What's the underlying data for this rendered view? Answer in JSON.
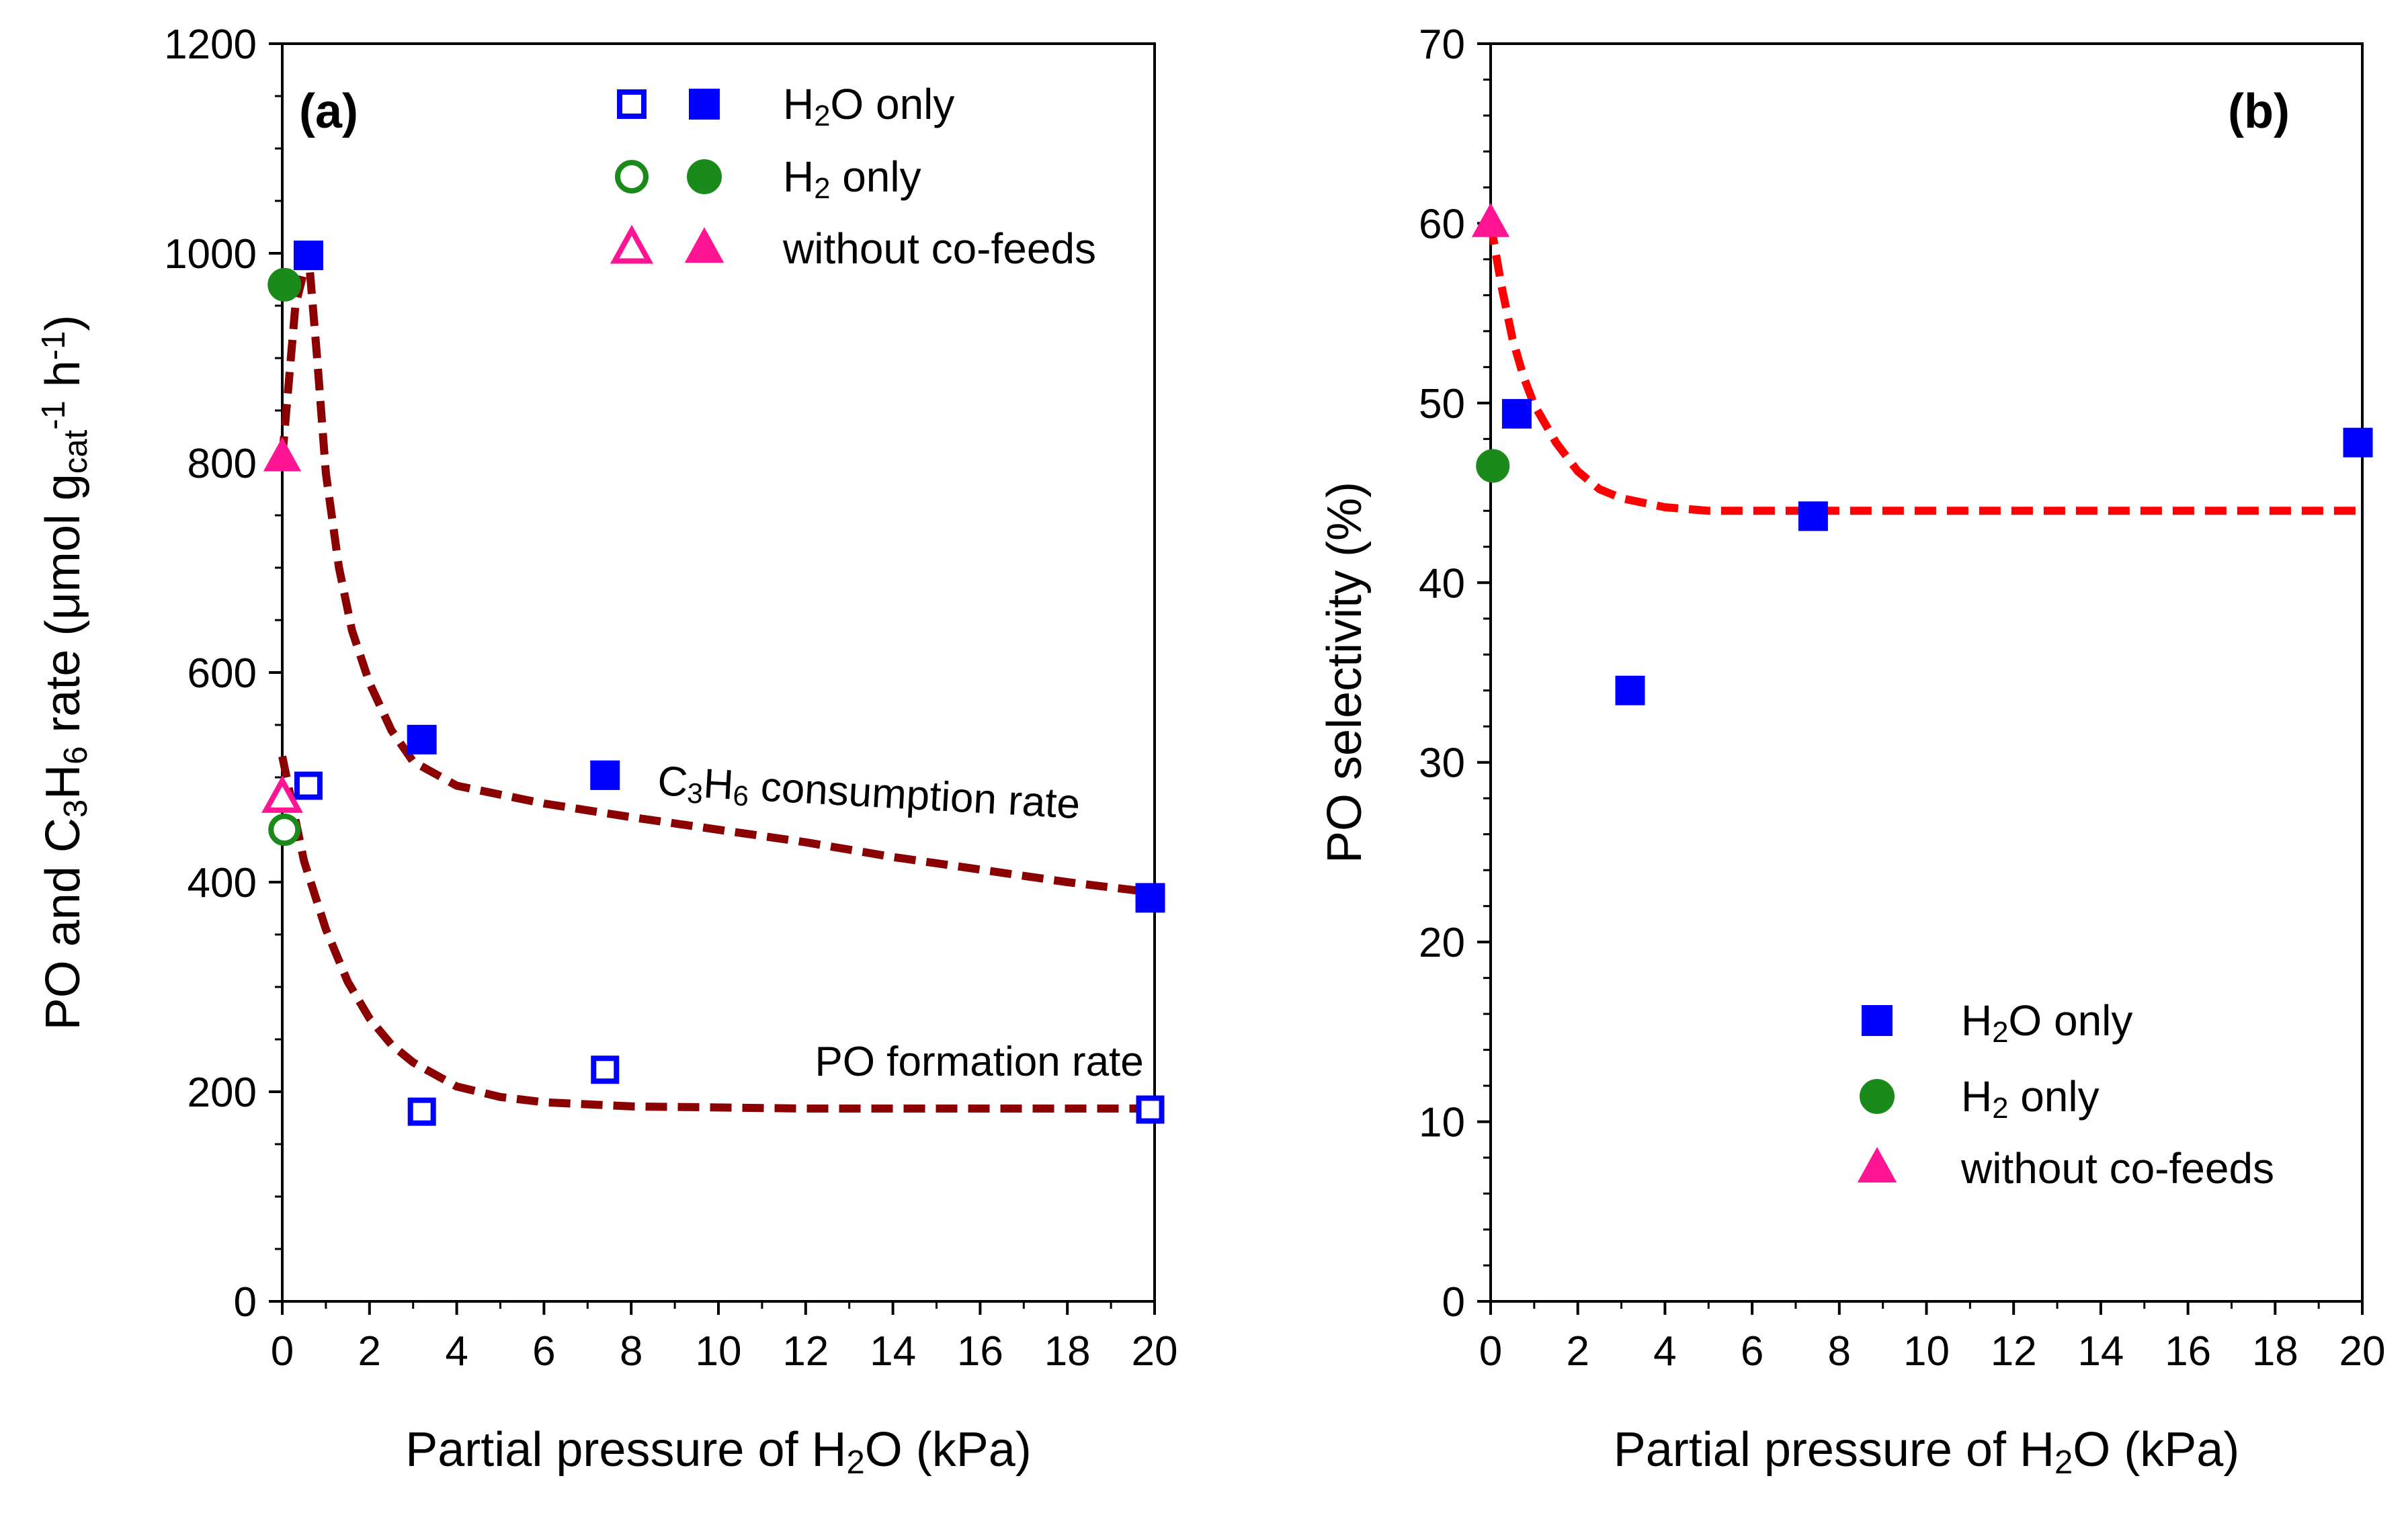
{
  "colors": {
    "h2o": "#0000ff",
    "h2": "#1a8a1a",
    "noco": "#ff1493",
    "fit": "#8b0000",
    "fit_b": "#ff0000",
    "axis": "#000000"
  },
  "chart_data": [
    {
      "type": "scatter",
      "panel_label": "(a)",
      "xlabel": "Partial pressure of H2O (kPa)",
      "xlabel_parts": {
        "pre": "Partial pressure of H",
        "sub": "2",
        "post": "O (kPa)"
      },
      "ylabel": "PO and C3H6 rate (μmol gcat-1 h-1)",
      "ylabel_parts": {
        "pre": "PO and C",
        "sub1": "3",
        "mid": "H",
        "sub2": "6",
        "post": " rate (μmol g",
        "sub3": "cat",
        "sup1": "-1",
        "h": " h",
        "sup2": "-1",
        "end": ")"
      },
      "xlim": [
        0,
        20
      ],
      "ylim": [
        0,
        1200
      ],
      "xticks": [
        0,
        2,
        4,
        6,
        8,
        10,
        12,
        14,
        16,
        18,
        20
      ],
      "yticks": [
        0,
        200,
        400,
        600,
        800,
        1000,
        1200
      ],
      "legend": {
        "position": "top-right",
        "entries": [
          {
            "label": "H2O only",
            "parts": {
              "pre": "H",
              "sub": "2",
              "post": "O only"
            },
            "marker": "square"
          },
          {
            "label": "H2 only",
            "parts": {
              "pre": "H",
              "sub": "2",
              "post": " only"
            },
            "marker": "circle"
          },
          {
            "label": "without co-feeds",
            "parts": {
              "pre": "without co-feeds",
              "sub": "",
              "post": ""
            },
            "marker": "triangle"
          }
        ]
      },
      "annotations": {
        "consumption": {
          "pre": "C",
          "sub1": "3",
          "mid": "H",
          "sub2": "6",
          "post": " consumption rate"
        },
        "formation": "PO formation rate"
      },
      "series": [
        {
          "name": "H2O only - C3H6 consumption rate",
          "marker": "square",
          "fill": "filled",
          "x": [
            0.6,
            3.2,
            7.4,
            19.9
          ],
          "y": [
            998,
            536,
            502,
            385
          ]
        },
        {
          "name": "H2O only - PO formation rate",
          "marker": "square",
          "fill": "open",
          "x": [
            0.6,
            3.2,
            7.4,
            19.9
          ],
          "y": [
            492,
            181,
            221,
            183
          ]
        },
        {
          "name": "H2 only - C3H6 consumption rate",
          "marker": "circle",
          "fill": "filled",
          "x": [
            0.05
          ],
          "y": [
            970
          ]
        },
        {
          "name": "H2 only - PO formation rate",
          "marker": "circle",
          "fill": "open",
          "x": [
            0.05
          ],
          "y": [
            450
          ]
        },
        {
          "name": "without co-feeds - C3H6 consumption rate",
          "marker": "triangle",
          "fill": "filled",
          "x": [
            0.0
          ],
          "y": [
            805
          ]
        },
        {
          "name": "without co-feeds - PO formation rate",
          "marker": "triangle",
          "fill": "open",
          "x": [
            0.0
          ],
          "y": [
            480
          ]
        }
      ],
      "fit_lines": [
        {
          "name": "C3H6 consumption fit",
          "x": [
            0.0,
            0.3,
            0.6,
            0.8,
            1.0,
            1.3,
            1.6,
            2.0,
            2.5,
            3.0,
            4.0,
            6.0,
            8.0,
            10.0,
            12.0,
            14.0,
            16.0,
            18.0,
            20.0
          ],
          "y": [
            805,
            950,
            1000,
            900,
            790,
            700,
            640,
            590,
            545,
            515,
            492,
            475,
            462,
            450,
            438,
            424,
            412,
            400,
            390
          ]
        },
        {
          "name": "PO formation fit",
          "x": [
            0.0,
            0.5,
            1.0,
            1.5,
            2.0,
            2.5,
            3.0,
            4.0,
            5.0,
            6.0,
            8.0,
            10.0,
            12.0,
            16.0,
            20.0
          ],
          "y": [
            520,
            420,
            355,
            305,
            270,
            245,
            228,
            205,
            195,
            190,
            186,
            185,
            184,
            184,
            184
          ]
        }
      ]
    },
    {
      "type": "scatter",
      "panel_label": "(b)",
      "xlabel": "Partial pressure of H2O (kPa)",
      "xlabel_parts": {
        "pre": "Partial pressure of H",
        "sub": "2",
        "post": "O (kPa)"
      },
      "ylabel": "PO selectivity (%)",
      "xlim": [
        0,
        20
      ],
      "ylim": [
        0,
        70
      ],
      "xticks": [
        0,
        2,
        4,
        6,
        8,
        10,
        12,
        14,
        16,
        18,
        20
      ],
      "yticks": [
        0,
        10,
        20,
        30,
        40,
        50,
        60,
        70
      ],
      "legend": {
        "position": "bottom-right",
        "entries": [
          {
            "label": "H2O only",
            "parts": {
              "pre": "H",
              "sub": "2",
              "post": "O only"
            },
            "marker": "square"
          },
          {
            "label": "H2 only",
            "parts": {
              "pre": "H",
              "sub": "2",
              "post": " only"
            },
            "marker": "circle"
          },
          {
            "label": "without co-feeds",
            "parts": {
              "pre": "without co-feeds",
              "sub": "",
              "post": ""
            },
            "marker": "triangle"
          }
        ]
      },
      "series": [
        {
          "name": "H2O only",
          "marker": "square",
          "fill": "filled",
          "x": [
            0.6,
            3.2,
            7.4,
            19.9
          ],
          "y": [
            49.4,
            34.0,
            43.7,
            47.8
          ]
        },
        {
          "name": "H2 only",
          "marker": "circle",
          "fill": "filled",
          "x": [
            0.05
          ],
          "y": [
            46.5
          ]
        },
        {
          "name": "without co-feeds",
          "marker": "triangle",
          "fill": "filled",
          "x": [
            0.0
          ],
          "y": [
            60.0
          ]
        }
      ],
      "fit_lines": [
        {
          "name": "PO selectivity fit",
          "x": [
            0.0,
            0.25,
            0.5,
            0.75,
            1.0,
            1.5,
            2.0,
            2.5,
            3.0,
            4.0,
            5.0,
            6.0,
            8.0,
            10.0,
            14.0,
            20.0
          ],
          "y": [
            60.0,
            56.5,
            53.6,
            51.5,
            49.9,
            47.8,
            46.2,
            45.2,
            44.7,
            44.2,
            44.0,
            44.0,
            44.0,
            44.0,
            44.0,
            44.0
          ]
        }
      ]
    }
  ]
}
